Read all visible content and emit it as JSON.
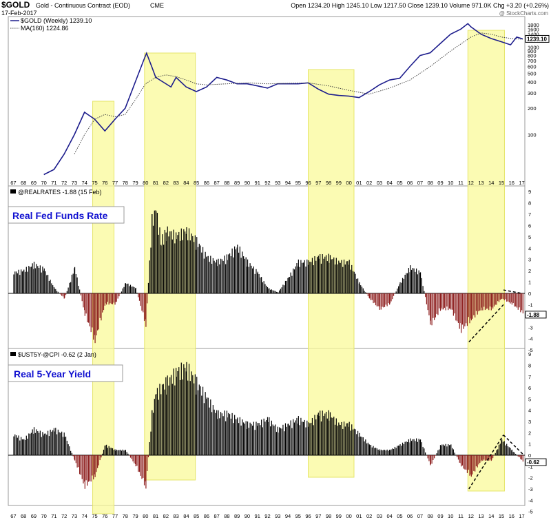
{
  "header": {
    "symbol": "$GOLD",
    "name": "Gold - Continuous Contract (EOD)",
    "exchange": "CME",
    "date": "17-Feb-2017",
    "stats": "Open 1234.20  High 1245.10  Low 1217.50  Close 1239.10  Volume 971.0K  Chg +3.20 (+0.26%)",
    "watermark": "@ StockCharts.com"
  },
  "legend_price": {
    "series": "$GOLD (Weekly) 1239.10",
    "ma": "MA(160) 1224.86",
    "last_label": "1239.10"
  },
  "legend_fed": {
    "series": "@REALRATES -1.88 (15 Feb)",
    "annotation": "Real Fed Funds Rate",
    "last_label": "-1.88"
  },
  "legend_5y": {
    "series": "$UST5Y-@CPI -0.62 (2 Jan)",
    "annotation": "Real 5-Year Yield",
    "last_label": "-0.62"
  },
  "colors": {
    "price": "#1c1c8c",
    "ma": "#444444",
    "pos_bar": "#000000",
    "neg_bar": "#8b1a1a",
    "highlight": "#fafa9a",
    "annotation_text": "#1010d0"
  },
  "chart_data": [
    {
      "type": "line",
      "title": "$GOLD (Weekly)",
      "x_ticks": [
        "67",
        "68",
        "69",
        "70",
        "71",
        "72",
        "73",
        "74",
        "75",
        "76",
        "77",
        "78",
        "79",
        "80",
        "81",
        "82",
        "83",
        "84",
        "85",
        "86",
        "87",
        "88",
        "89",
        "90",
        "91",
        "92",
        "93",
        "94",
        "95",
        "96",
        "97",
        "98",
        "99",
        "00",
        "01",
        "02",
        "03",
        "04",
        "05",
        "06",
        "07",
        "08",
        "09",
        "10",
        "11",
        "12",
        "13",
        "14",
        "15",
        "16",
        "17"
      ],
      "y_scale": "log",
      "y_ticks": [
        100,
        200,
        300,
        400,
        500,
        600,
        700,
        800,
        900,
        1000,
        1200,
        1400,
        1600,
        1800
      ],
      "series": [
        {
          "name": "$GOLD (Weekly) 1239.10",
          "x": [
            1970,
            1971,
            1972,
            1973,
            1974,
            1975,
            1976,
            1977,
            1978,
            1979,
            1979.8,
            1980.1,
            1980.6,
            1981,
            1982.5,
            1983,
            1984,
            1985,
            1986,
            1987,
            1988,
            1989,
            1990,
            1991,
            1992,
            1993,
            1994,
            1995,
            1996,
            1997,
            1998,
            1999,
            2000,
            2001,
            2002,
            2003,
            2004,
            2005,
            2006,
            2007,
            2008,
            2009,
            2010,
            2011,
            2011.7,
            2012,
            2013,
            2014,
            2015,
            2015.9,
            2016.5,
            2017.1
          ],
          "values": [
            35,
            40,
            60,
            100,
            180,
            150,
            110,
            150,
            200,
            400,
            700,
            850,
            600,
            450,
            350,
            450,
            350,
            310,
            350,
            450,
            420,
            380,
            380,
            360,
            340,
            380,
            380,
            380,
            390,
            330,
            290,
            280,
            275,
            265,
            310,
            370,
            420,
            440,
            600,
            800,
            860,
            1100,
            1400,
            1600,
            1850,
            1700,
            1400,
            1250,
            1150,
            1060,
            1300,
            1239
          ]
        },
        {
          "name": "MA(160) 1224.86",
          "x": [
            1973,
            1974,
            1975,
            1976,
            1977,
            1978,
            1979,
            1980,
            1981,
            1982,
            1983,
            1984,
            1985,
            1986,
            1988,
            1990,
            1992,
            1994,
            1996,
            1998,
            2000,
            2002,
            2004,
            2006,
            2008,
            2010,
            2012,
            2013,
            2014,
            2015,
            2016,
            2017.1
          ],
          "values": [
            60,
            100,
            150,
            170,
            160,
            170,
            250,
            380,
            450,
            480,
            460,
            420,
            380,
            370,
            380,
            390,
            380,
            385,
            390,
            360,
            320,
            290,
            340,
            420,
            600,
            900,
            1300,
            1450,
            1400,
            1300,
            1250,
            1225
          ]
        }
      ]
    },
    {
      "type": "bar",
      "title": "@REALRATES",
      "ylim": [
        -5,
        9.5
      ],
      "y_ticks": [
        -5,
        -4,
        -3,
        -2,
        -1,
        0,
        1,
        2,
        3,
        4,
        5,
        6,
        7,
        8,
        9
      ],
      "points": [
        [
          1967,
          2
        ],
        [
          1968,
          2.2
        ],
        [
          1969,
          2.8
        ],
        [
          1970,
          2.3
        ],
        [
          1971,
          0.5
        ],
        [
          1972,
          -0.5
        ],
        [
          1973,
          2.5
        ],
        [
          1974,
          -2
        ],
        [
          1975,
          -4.5
        ],
        [
          1976,
          -1
        ],
        [
          1977,
          -1
        ],
        [
          1978,
          1
        ],
        [
          1979,
          0.5
        ],
        [
          1980,
          -3
        ],
        [
          1980.6,
          7
        ],
        [
          1981,
          8
        ],
        [
          1981.5,
          5
        ],
        [
          1982,
          6
        ],
        [
          1983,
          5.5
        ],
        [
          1984,
          6
        ],
        [
          1985,
          5
        ],
        [
          1986,
          3.5
        ],
        [
          1987,
          3
        ],
        [
          1988,
          3.5
        ],
        [
          1989,
          4.5
        ],
        [
          1990,
          3
        ],
        [
          1991,
          2
        ],
        [
          1992,
          0.5
        ],
        [
          1993,
          0.1
        ],
        [
          1994,
          1.5
        ],
        [
          1995,
          3
        ],
        [
          1996,
          3
        ],
        [
          1997,
          3.5
        ],
        [
          1998,
          3.5
        ],
        [
          1999,
          3
        ],
        [
          2000,
          3
        ],
        [
          2001,
          1
        ],
        [
          2002,
          -0.5
        ],
        [
          2003,
          -1.5
        ],
        [
          2004,
          -1
        ],
        [
          2005,
          1
        ],
        [
          2006,
          2.5
        ],
        [
          2007,
          2
        ],
        [
          2008,
          -3
        ],
        [
          2009,
          -1.5
        ],
        [
          2010,
          -1.5
        ],
        [
          2011,
          -3.5
        ],
        [
          2012,
          -2.5
        ],
        [
          2013,
          -1.5
        ],
        [
          2014,
          -1.5
        ],
        [
          2015,
          -0.5
        ],
        [
          2016,
          -1
        ],
        [
          2017.1,
          -1.88
        ]
      ]
    },
    {
      "type": "bar",
      "title": "$UST5Y-@CPI",
      "ylim": [
        -5,
        9.5
      ],
      "y_ticks": [
        -5,
        -4,
        -3,
        -2,
        -1,
        0,
        1,
        2,
        3,
        4,
        5,
        6,
        7,
        8,
        9
      ],
      "points": [
        [
          1967,
          2
        ],
        [
          1968,
          1.5
        ],
        [
          1969,
          2.5
        ],
        [
          1970,
          2
        ],
        [
          1971,
          2.5
        ],
        [
          1972,
          2
        ],
        [
          1973,
          -0.5
        ],
        [
          1974,
          -3
        ],
        [
          1975,
          -2
        ],
        [
          1976,
          1
        ],
        [
          1977,
          0.5
        ],
        [
          1978,
          0.5
        ],
        [
          1979,
          -1
        ],
        [
          1980,
          -3
        ],
        [
          1980.6,
          4
        ],
        [
          1981,
          6
        ],
        [
          1982,
          7
        ],
        [
          1983,
          8
        ],
        [
          1984,
          8.5
        ],
        [
          1985,
          7
        ],
        [
          1986,
          5.5
        ],
        [
          1987,
          4
        ],
        [
          1988,
          4
        ],
        [
          1989,
          3.5
        ],
        [
          1990,
          3
        ],
        [
          1991,
          3
        ],
        [
          1992,
          3.5
        ],
        [
          1993,
          2.5
        ],
        [
          1994,
          3
        ],
        [
          1995,
          3.5
        ],
        [
          1996,
          3
        ],
        [
          1997,
          4
        ],
        [
          1998,
          4
        ],
        [
          1999,
          3
        ],
        [
          2000,
          3
        ],
        [
          2001,
          2
        ],
        [
          2002,
          1
        ],
        [
          2003,
          0.5
        ],
        [
          2004,
          0.5
        ],
        [
          2005,
          1
        ],
        [
          2006,
          1.5
        ],
        [
          2007,
          1.5
        ],
        [
          2008,
          -1
        ],
        [
          2009,
          1
        ],
        [
          2010,
          1
        ],
        [
          2011,
          -1
        ],
        [
          2012,
          -2
        ],
        [
          2013,
          -0.5
        ],
        [
          2014,
          -0.5
        ],
        [
          2015,
          1.5
        ],
        [
          2016,
          0.5
        ],
        [
          2017.1,
          -0.62
        ]
      ]
    }
  ],
  "highlights": [
    {
      "start": 1974.8,
      "end": 1976.9
    },
    {
      "start": 1979.9,
      "end": 1984.9
    },
    {
      "start": 1996.0,
      "end": 2000.5
    },
    {
      "start": 2011.7,
      "end": 2015.3
    }
  ]
}
